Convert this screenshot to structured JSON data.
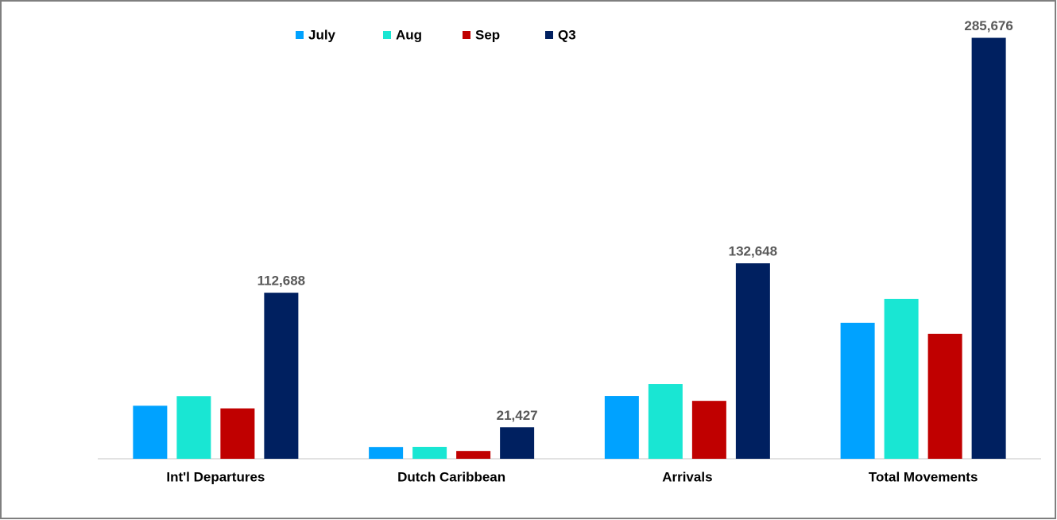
{
  "chart_data": {
    "type": "bar",
    "categories": [
      "Int'l Departures",
      "Dutch Caribbean",
      "Arrivals",
      "Total Movements"
    ],
    "series": [
      {
        "name": "July",
        "color": "#00a2ff",
        "values": [
          36000,
          8000,
          42600,
          92300
        ]
      },
      {
        "name": "Aug",
        "color": "#19e6d3",
        "values": [
          42500,
          8100,
          50700,
          108500
        ]
      },
      {
        "name": "Sep",
        "color": "#c00000",
        "values": [
          34200,
          5300,
          39300,
          84800
        ]
      },
      {
        "name": "Q3",
        "color": "#002060",
        "values": [
          112688,
          21427,
          132648,
          285676
        ],
        "value_labels": [
          "112,688",
          "21,427",
          "132,648",
          "285,676"
        ]
      }
    ],
    "ylim": [
      0,
      300000
    ],
    "grid": false
  }
}
